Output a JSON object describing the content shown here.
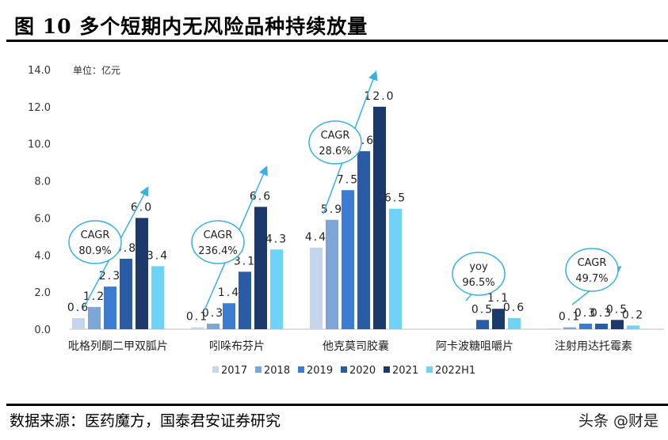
{
  "title": "图 10 多个短期内无风险品种持续放量",
  "source": "数据来源：医药魔方，国泰君安证券研究",
  "watermark": "头条 @财是",
  "chart_data": {
    "type": "bar",
    "title": "",
    "unit_label": "单位：亿元",
    "ylim": [
      0,
      14
    ],
    "yticks": [
      "0.0",
      "2.0",
      "4.0",
      "6.0",
      "8.0",
      "10.0",
      "12.0",
      "14.0"
    ],
    "grid": false,
    "legend_position": "bottom",
    "categories": [
      "吡格列酮二甲双胍片",
      "吲哚布芬片",
      "他克莫司胶囊",
      "阿卡波糖咀嚼片",
      "注射用达托霉素"
    ],
    "series": [
      {
        "name": "2017",
        "color": "#c5d6ec",
        "values": [
          0.6,
          0.1,
          4.4,
          null,
          0.02
        ],
        "labels": [
          "0.6",
          "0.1",
          "4.4",
          "",
          ""
        ]
      },
      {
        "name": "2018",
        "color": "#7da5d8",
        "values": [
          1.2,
          0.3,
          5.9,
          null,
          0.1
        ],
        "labels": [
          "1.2",
          "0.3",
          "5.9",
          "",
          "0.1"
        ]
      },
      {
        "name": "2019",
        "color": "#3b7bd1",
        "values": [
          2.3,
          1.4,
          7.5,
          null,
          0.3
        ],
        "labels": [
          "2.3",
          "1.4",
          "7.5",
          "",
          "0.3"
        ]
      },
      {
        "name": "2020",
        "color": "#2a5ca6",
        "values": [
          3.8,
          3.1,
          9.6,
          0.5,
          0.3
        ],
        "labels": [
          "3.8",
          "3.1",
          "9.6",
          "0.5",
          "0.3"
        ]
      },
      {
        "name": "2021",
        "color": "#1b3a6b",
        "values": [
          6.0,
          6.6,
          12.0,
          1.1,
          0.5
        ],
        "labels": [
          "6.0",
          "6.6",
          "12.0",
          "1.1",
          "0.5"
        ]
      },
      {
        "name": "2022H1",
        "color": "#6fd2f7",
        "values": [
          3.4,
          4.3,
          6.5,
          0.6,
          0.2
        ],
        "labels": [
          "3.4",
          "4.3",
          "6.5",
          "0.6",
          "0.2"
        ]
      }
    ],
    "annotations": [
      {
        "category": 0,
        "line1": "CAGR",
        "line2": "80.9%"
      },
      {
        "category": 1,
        "line1": "CAGR",
        "line2": "236.4%"
      },
      {
        "category": 2,
        "line1": "CAGR",
        "line2": "28.6%"
      },
      {
        "category": 3,
        "line1": "yoy",
        "line2": "96.5%"
      },
      {
        "category": 4,
        "line1": "CAGR",
        "line2": "49.7%"
      }
    ],
    "annotation_color": "#3ab0e2"
  }
}
